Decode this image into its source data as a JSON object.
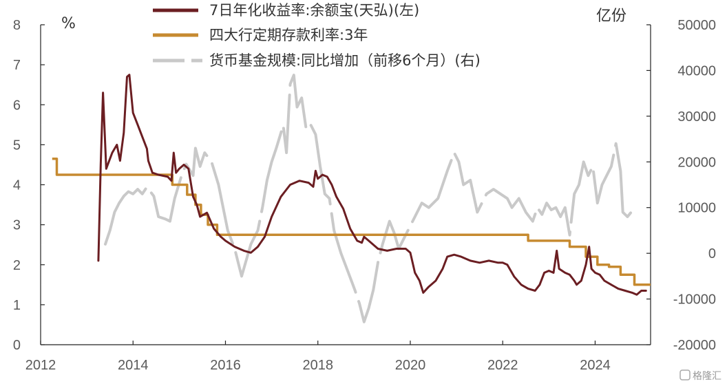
{
  "chart_data": {
    "type": "line",
    "xlim": [
      2012,
      2025.2
    ],
    "x_ticks": [
      "2012",
      "2014",
      "2016",
      "2018",
      "2020",
      "2022",
      "2024"
    ],
    "y_left": {
      "unit": "%",
      "ylim": [
        0,
        8
      ],
      "ticks": [
        "0",
        "1",
        "2",
        "3",
        "4",
        "5",
        "6",
        "7",
        "8"
      ]
    },
    "y_right": {
      "unit": "亿份",
      "ylim": [
        -20000,
        50000
      ],
      "ticks": [
        "-20000",
        "-10000",
        "0",
        "10000",
        "20000",
        "30000",
        "40000",
        "50000"
      ]
    },
    "legend_position": "top-left",
    "series": [
      {
        "name": "7日年化收益率:余额宝(天弘)(左)",
        "axis": "left",
        "color": "#6b1e22",
        "style": "solid",
        "points": [
          [
            2013.25,
            2.1
          ],
          [
            2013.3,
            4.5
          ],
          [
            2013.35,
            6.3
          ],
          [
            2013.42,
            4.4
          ],
          [
            2013.55,
            4.8
          ],
          [
            2013.65,
            5.0
          ],
          [
            2013.72,
            4.6
          ],
          [
            2013.8,
            5.3
          ],
          [
            2013.87,
            6.7
          ],
          [
            2013.92,
            6.75
          ],
          [
            2014.0,
            5.8
          ],
          [
            2014.1,
            5.5
          ],
          [
            2014.2,
            5.2
          ],
          [
            2014.3,
            4.9
          ],
          [
            2014.33,
            4.6
          ],
          [
            2014.42,
            4.3
          ],
          [
            2014.55,
            4.25
          ],
          [
            2014.75,
            4.2
          ],
          [
            2014.83,
            4.1
          ],
          [
            2014.88,
            4.8
          ],
          [
            2014.93,
            4.3
          ],
          [
            2015.0,
            4.4
          ],
          [
            2015.1,
            4.5
          ],
          [
            2015.2,
            4.4
          ],
          [
            2015.3,
            3.7
          ],
          [
            2015.38,
            3.5
          ],
          [
            2015.45,
            3.2
          ],
          [
            2015.6,
            3.3
          ],
          [
            2015.75,
            2.9
          ],
          [
            2015.9,
            2.7
          ],
          [
            2016.0,
            2.6
          ],
          [
            2016.2,
            2.45
          ],
          [
            2016.4,
            2.35
          ],
          [
            2016.55,
            2.3
          ],
          [
            2016.7,
            2.45
          ],
          [
            2016.85,
            2.7
          ],
          [
            2017.0,
            3.2
          ],
          [
            2017.2,
            3.7
          ],
          [
            2017.4,
            4.0
          ],
          [
            2017.6,
            4.1
          ],
          [
            2017.8,
            4.05
          ],
          [
            2017.9,
            3.95
          ],
          [
            2017.95,
            4.35
          ],
          [
            2018.0,
            4.15
          ],
          [
            2018.1,
            4.25
          ],
          [
            2018.2,
            4.2
          ],
          [
            2018.3,
            4.0
          ],
          [
            2018.4,
            3.7
          ],
          [
            2018.55,
            3.4
          ],
          [
            2018.7,
            2.9
          ],
          [
            2018.85,
            2.6
          ],
          [
            2018.95,
            2.55
          ],
          [
            2019.0,
            2.7
          ],
          [
            2019.1,
            2.6
          ],
          [
            2019.3,
            2.4
          ],
          [
            2019.5,
            2.35
          ],
          [
            2019.7,
            2.4
          ],
          [
            2019.9,
            2.4
          ],
          [
            2020.0,
            2.3
          ],
          [
            2020.1,
            1.8
          ],
          [
            2020.2,
            1.6
          ],
          [
            2020.28,
            1.3
          ],
          [
            2020.4,
            1.45
          ],
          [
            2020.55,
            1.6
          ],
          [
            2020.7,
            1.9
          ],
          [
            2020.8,
            2.2
          ],
          [
            2020.95,
            2.25
          ],
          [
            2021.1,
            2.2
          ],
          [
            2021.3,
            2.1
          ],
          [
            2021.5,
            2.05
          ],
          [
            2021.7,
            2.1
          ],
          [
            2021.9,
            2.05
          ],
          [
            2022.0,
            2.05
          ],
          [
            2022.1,
            2.0
          ],
          [
            2022.25,
            1.7
          ],
          [
            2022.4,
            1.5
          ],
          [
            2022.55,
            1.4
          ],
          [
            2022.7,
            1.35
          ],
          [
            2022.8,
            1.5
          ],
          [
            2022.9,
            1.8
          ],
          [
            2023.0,
            1.85
          ],
          [
            2023.1,
            1.8
          ],
          [
            2023.17,
            2.35
          ],
          [
            2023.22,
            1.9
          ],
          [
            2023.35,
            1.8
          ],
          [
            2023.45,
            1.75
          ],
          [
            2023.55,
            1.6
          ],
          [
            2023.6,
            1.5
          ],
          [
            2023.7,
            1.6
          ],
          [
            2023.8,
            2.0
          ],
          [
            2023.87,
            2.45
          ],
          [
            2023.92,
            1.9
          ],
          [
            2024.0,
            1.8
          ],
          [
            2024.1,
            1.75
          ],
          [
            2024.2,
            1.6
          ],
          [
            2024.35,
            1.5
          ],
          [
            2024.5,
            1.4
          ],
          [
            2024.65,
            1.35
          ],
          [
            2024.8,
            1.3
          ],
          [
            2024.9,
            1.25
          ],
          [
            2025.0,
            1.35
          ],
          [
            2025.1,
            1.35
          ]
        ]
      },
      {
        "name": "四大行定期存款利率:3年",
        "axis": "left",
        "color": "#c68a30",
        "style": "step",
        "points": [
          [
            2012.25,
            4.65
          ],
          [
            2012.35,
            4.25
          ],
          [
            2014.85,
            4.0
          ],
          [
            2015.17,
            3.75
          ],
          [
            2015.35,
            3.5
          ],
          [
            2015.47,
            3.25
          ],
          [
            2015.62,
            3.0
          ],
          [
            2015.82,
            2.75
          ],
          [
            2022.55,
            2.6
          ],
          [
            2023.45,
            2.45
          ],
          [
            2023.8,
            2.2
          ],
          [
            2024.05,
            2.0
          ],
          [
            2024.3,
            1.95
          ],
          [
            2024.55,
            1.75
          ],
          [
            2024.85,
            1.5
          ],
          [
            2025.2,
            1.5
          ]
        ]
      },
      {
        "name": "货币基金规模:同比增加（前移6个月）(右)",
        "axis": "right",
        "color": "#c9c9c9",
        "style": "dashed",
        "points": [
          [
            2013.4,
            2000
          ],
          [
            2013.5,
            5000
          ],
          [
            2013.6,
            9000
          ],
          [
            2013.7,
            11000
          ],
          [
            2013.8,
            12500
          ],
          [
            2013.9,
            13500
          ],
          [
            2014.0,
            13000
          ],
          [
            2014.1,
            14000
          ],
          [
            2014.2,
            13000
          ],
          [
            2014.3,
            14500
          ],
          [
            2014.45,
            12500
          ],
          [
            2014.55,
            8000
          ],
          [
            2014.7,
            7500
          ],
          [
            2014.8,
            7000
          ],
          [
            2014.9,
            12000
          ],
          [
            2015.05,
            17000
          ],
          [
            2015.15,
            19500
          ],
          [
            2015.3,
            17000
          ],
          [
            2015.35,
            23000
          ],
          [
            2015.45,
            19000
          ],
          [
            2015.55,
            22000
          ],
          [
            2015.7,
            20000
          ],
          [
            2015.85,
            15000
          ],
          [
            2015.95,
            10000
          ],
          [
            2016.05,
            5000
          ],
          [
            2016.2,
            1000
          ],
          [
            2016.3,
            -3000
          ],
          [
            2016.35,
            -5000
          ],
          [
            2016.45,
            -1500
          ],
          [
            2016.55,
            2000
          ],
          [
            2016.7,
            5000
          ],
          [
            2016.8,
            10000
          ],
          [
            2016.9,
            16000
          ],
          [
            2017.0,
            20000
          ],
          [
            2017.1,
            23000
          ],
          [
            2017.25,
            28000
          ],
          [
            2017.32,
            22000
          ],
          [
            2017.4,
            37000
          ],
          [
            2017.48,
            39000
          ],
          [
            2017.55,
            32000
          ],
          [
            2017.65,
            34000
          ],
          [
            2017.75,
            27000
          ],
          [
            2017.85,
            28000
          ],
          [
            2017.95,
            26000
          ],
          [
            2018.05,
            19000
          ],
          [
            2018.15,
            13000
          ],
          [
            2018.25,
            12000
          ],
          [
            2018.35,
            5000
          ],
          [
            2018.5,
            0
          ],
          [
            2018.65,
            -4000
          ],
          [
            2018.8,
            -8000
          ],
          [
            2018.9,
            -11000
          ],
          [
            2019.0,
            -15000
          ],
          [
            2019.1,
            -12000
          ],
          [
            2019.2,
            -8000
          ],
          [
            2019.3,
            -2000
          ],
          [
            2019.4,
            2000
          ],
          [
            2019.55,
            7000
          ],
          [
            2019.65,
            4500
          ],
          [
            2019.75,
            1000
          ],
          [
            2019.85,
            3000
          ],
          [
            2019.95,
            5000
          ],
          [
            2020.1,
            8000
          ],
          [
            2020.25,
            11000
          ],
          [
            2020.4,
            10000
          ],
          [
            2020.6,
            12000
          ],
          [
            2020.8,
            18000
          ],
          [
            2020.95,
            22000
          ],
          [
            2021.05,
            20000
          ],
          [
            2021.15,
            15000
          ],
          [
            2021.3,
            16000
          ],
          [
            2021.45,
            9000
          ],
          [
            2021.55,
            11000
          ],
          [
            2021.65,
            13000
          ],
          [
            2021.8,
            14000
          ],
          [
            2021.95,
            13000
          ],
          [
            2022.1,
            12000
          ],
          [
            2022.2,
            10000
          ],
          [
            2022.35,
            12000
          ],
          [
            2022.5,
            9000
          ],
          [
            2022.65,
            7000
          ],
          [
            2022.75,
            10000
          ],
          [
            2022.85,
            8500
          ],
          [
            2022.95,
            11000
          ],
          [
            2023.05,
            9500
          ],
          [
            2023.15,
            10000
          ],
          [
            2023.25,
            8000
          ],
          [
            2023.35,
            10000
          ],
          [
            2023.45,
            4000
          ],
          [
            2023.55,
            13000
          ],
          [
            2023.65,
            15000
          ],
          [
            2023.75,
            20000
          ],
          [
            2023.85,
            17000
          ],
          [
            2023.95,
            19000
          ],
          [
            2024.05,
            11000
          ],
          [
            2024.15,
            15000
          ],
          [
            2024.25,
            17000
          ],
          [
            2024.35,
            19000
          ],
          [
            2024.45,
            24000
          ],
          [
            2024.55,
            18000
          ],
          [
            2024.6,
            9000
          ],
          [
            2024.7,
            8000
          ],
          [
            2024.78,
            9000
          ]
        ]
      }
    ]
  },
  "watermark": {
    "text": "格隆汇"
  }
}
